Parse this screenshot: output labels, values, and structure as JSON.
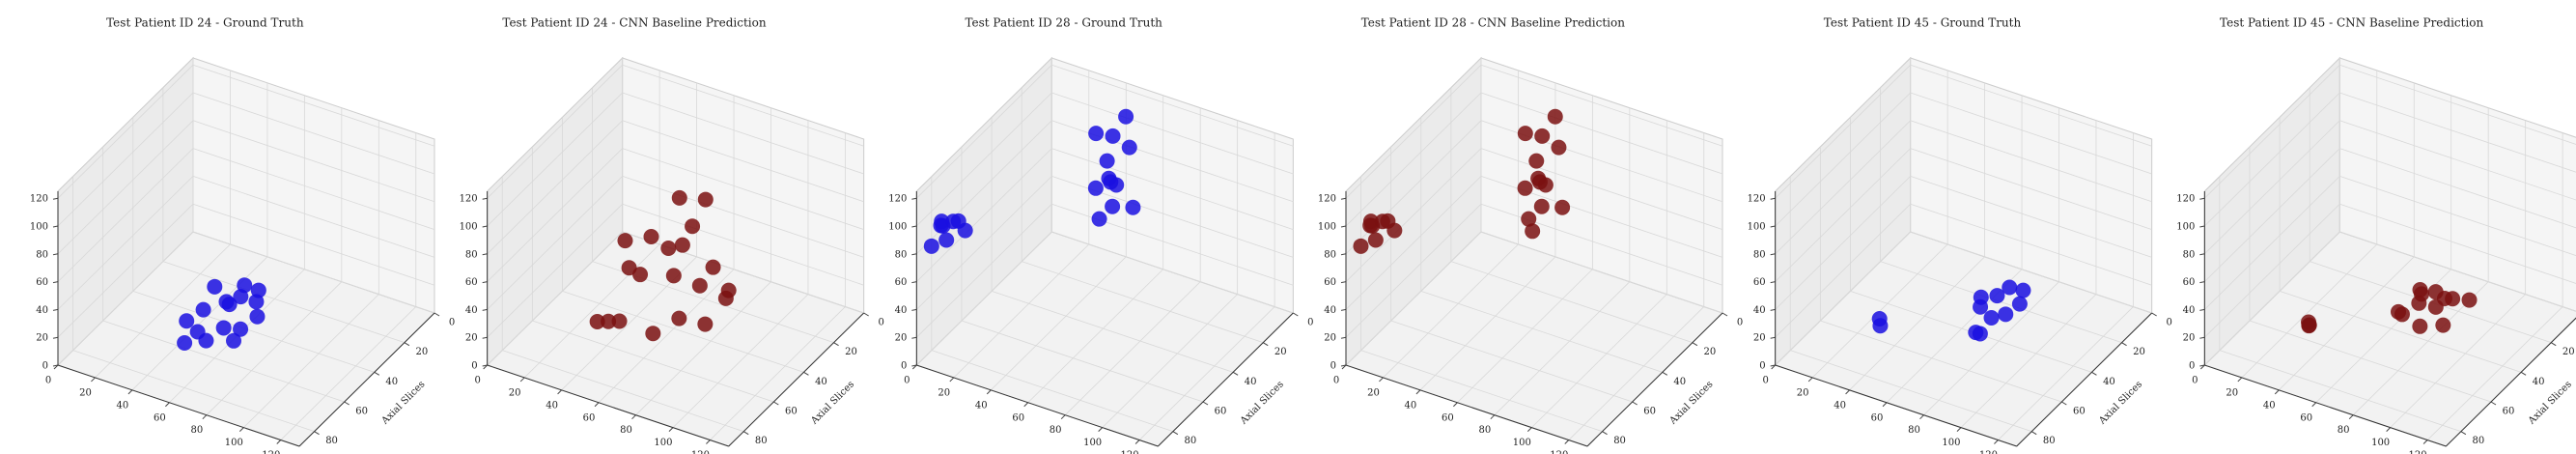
{
  "chart_data": [
    {
      "type": "scatter3d",
      "title": "Test Patient ID 24 - Ground Truth",
      "ylabel": "Axial Slices",
      "xlim": [
        0,
        130
      ],
      "ylim": [
        0,
        90
      ],
      "zlim": [
        0,
        125
      ],
      "xticks": [
        0,
        20,
        40,
        60,
        80,
        100,
        120
      ],
      "yticks": [
        0,
        20,
        40,
        60,
        80
      ],
      "zticks": [
        0,
        20,
        40,
        60,
        80,
        100,
        120
      ],
      "series": [
        {
          "color": "#1a0fe0",
          "x": [
            45,
            50,
            55,
            60,
            65,
            70,
            75,
            48,
            58,
            68,
            52,
            62,
            72,
            56,
            66,
            60
          ],
          "y": [
            60,
            55,
            65,
            50,
            60,
            55,
            50,
            45,
            40,
            42,
            70,
            68,
            62,
            35,
            38,
            52
          ],
          "z": [
            20,
            25,
            22,
            28,
            24,
            20,
            26,
            30,
            22,
            25,
            18,
            22,
            20,
            24,
            28,
            32
          ]
        }
      ]
    },
    {
      "type": "scatter3d",
      "title": "Test Patient ID 24 - CNN Baseline Prediction",
      "ylabel": "Axial Slices",
      "xlim": [
        0,
        130
      ],
      "ylim": [
        0,
        90
      ],
      "zlim": [
        0,
        125
      ],
      "xticks": [
        0,
        20,
        40,
        60,
        80,
        100,
        120
      ],
      "yticks": [
        0,
        20,
        40,
        60,
        80
      ],
      "zticks": [
        0,
        20,
        40,
        60,
        80,
        100,
        120
      ],
      "series": [
        {
          "color": "#7a1010",
          "x": [
            35,
            45,
            55,
            65,
            75,
            85,
            40,
            50,
            60,
            70,
            80,
            45,
            55,
            65,
            75,
            50,
            60,
            70,
            55,
            65
          ],
          "y": [
            60,
            65,
            70,
            60,
            55,
            50,
            45,
            50,
            40,
            35,
            30,
            25,
            28,
            20,
            22,
            60,
            55,
            40,
            30,
            25
          ],
          "z": [
            15,
            25,
            35,
            20,
            30,
            25,
            40,
            45,
            38,
            30,
            20,
            35,
            45,
            25,
            15,
            80,
            82,
            78,
            81,
            79
          ]
        }
      ]
    },
    {
      "type": "scatter3d",
      "title": "Test Patient ID 28 - Ground Truth",
      "ylabel": "Axial Slices",
      "xlim": [
        0,
        130
      ],
      "ylim": [
        0,
        90
      ],
      "zlim": [
        0,
        125
      ],
      "xticks": [
        0,
        20,
        40,
        60,
        80,
        100,
        120
      ],
      "yticks": [
        0,
        20,
        40,
        60,
        80
      ],
      "zticks": [
        0,
        20,
        40,
        60,
        80,
        100,
        120
      ],
      "series": [
        {
          "color": "#1a0fe0",
          "x": [
            2,
            5,
            8,
            10,
            12,
            4,
            7,
            10,
            40,
            45,
            50,
            55,
            60,
            65,
            48,
            58,
            62,
            52,
            55,
            68
          ],
          "y": [
            75,
            80,
            72,
            78,
            85,
            85,
            82,
            70,
            20,
            15,
            25,
            30,
            35,
            40,
            10,
            20,
            45,
            35,
            25,
            30
          ],
          "z": [
            85,
            92,
            88,
            95,
            90,
            82,
            98,
            80,
            110,
            105,
            100,
            95,
            100,
            90,
            115,
            108,
            85,
            92,
            85,
            80
          ]
        }
      ]
    },
    {
      "type": "scatter3d",
      "title": "Test Patient ID 28 - CNN Baseline Prediction",
      "ylabel": "Axial Slices",
      "xlim": [
        0,
        130
      ],
      "ylim": [
        0,
        90
      ],
      "zlim": [
        0,
        125
      ],
      "xticks": [
        0,
        20,
        40,
        60,
        80,
        100,
        120
      ],
      "yticks": [
        0,
        20,
        40,
        60,
        80
      ],
      "zticks": [
        0,
        20,
        40,
        60,
        80,
        100,
        120
      ],
      "series": [
        {
          "color": "#7a1010",
          "x": [
            2,
            5,
            8,
            10,
            12,
            4,
            7,
            10,
            40,
            45,
            50,
            55,
            60,
            65,
            48,
            58,
            62,
            52,
            55,
            68,
            60
          ],
          "y": [
            75,
            80,
            72,
            78,
            85,
            85,
            82,
            70,
            20,
            15,
            25,
            30,
            35,
            40,
            10,
            20,
            45,
            35,
            25,
            30,
            40
          ],
          "z": [
            85,
            92,
            88,
            95,
            90,
            82,
            98,
            80,
            110,
            105,
            100,
            95,
            100,
            90,
            115,
            108,
            85,
            92,
            85,
            80,
            70
          ]
        }
      ]
    },
    {
      "type": "scatter3d",
      "title": "Test Patient ID 45 - Ground Truth",
      "ylabel": "Axial Slices",
      "xlim": [
        0,
        130
      ],
      "ylim": [
        0,
        90
      ],
      "zlim": [
        0,
        125
      ],
      "xticks": [
        0,
        20,
        40,
        60,
        80,
        100,
        120
      ],
      "yticks": [
        0,
        20,
        40,
        60,
        80
      ],
      "zticks": [
        0,
        20,
        40,
        60,
        80,
        100,
        120
      ],
      "series": [
        {
          "color": "#1a0fe0",
          "x": [
            40,
            42,
            70,
            75,
            80,
            85,
            78,
            72,
            82,
            76,
            88,
            74
          ],
          "y": [
            70,
            72,
            40,
            35,
            45,
            30,
            50,
            42,
            38,
            28,
            36,
            48
          ],
          "z": [
            30,
            28,
            20,
            25,
            22,
            28,
            15,
            30,
            18,
            24,
            26,
            12
          ]
        }
      ]
    },
    {
      "type": "scatter3d",
      "title": "Test Patient ID 45 - CNN Baseline Prediction",
      "ylabel": "Axial Slices",
      "xlim": [
        0,
        130
      ],
      "ylim": [
        0,
        90
      ],
      "zlim": [
        0,
        125
      ],
      "xticks": [
        0,
        20,
        40,
        60,
        80,
        100,
        120
      ],
      "yticks": [
        0,
        20,
        40,
        60,
        80
      ],
      "zticks": [
        0,
        20,
        40,
        60,
        80,
        100,
        120
      ],
      "series": [
        {
          "color": "#7a1010",
          "x": [
            40,
            41,
            39,
            70,
            75,
            80,
            85,
            90,
            72,
            78,
            84,
            88,
            76,
            82,
            74
          ],
          "y": [
            70,
            71,
            69,
            45,
            40,
            35,
            30,
            25,
            50,
            42,
            34,
            40,
            30,
            48,
            38
          ],
          "z": [
            25,
            27,
            26,
            20,
            25,
            30,
            22,
            18,
            28,
            35,
            26,
            15,
            12,
            20,
            32
          ]
        }
      ]
    }
  ]
}
